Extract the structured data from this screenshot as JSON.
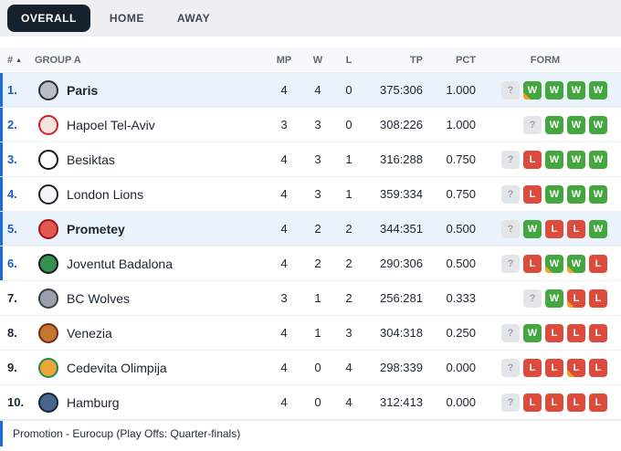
{
  "tabs": [
    {
      "label": "OVERALL",
      "active": true
    },
    {
      "label": "HOME",
      "active": false
    },
    {
      "label": "AWAY",
      "active": false
    }
  ],
  "table": {
    "headers": {
      "pos": "#",
      "sort_indicator": "▲",
      "team": "GROUP A",
      "mp": "MP",
      "w": "W",
      "l": "L",
      "tp": "TP",
      "pct": "PCT",
      "form": "FORM"
    },
    "rows": [
      {
        "pos": "1.",
        "team": "Paris",
        "mp": 4,
        "w": 4,
        "l": 0,
        "tp": "375:306",
        "pct": "1.000",
        "promoted": true,
        "highlighted": true,
        "logo": {
          "ring": "#2c3036",
          "fill": "#b9bec6"
        },
        "form": [
          {
            "r": "?"
          },
          {
            "r": "W",
            "ot": true
          },
          {
            "r": "W"
          },
          {
            "r": "W"
          },
          {
            "r": "W"
          }
        ]
      },
      {
        "pos": "2.",
        "team": "Hapoel Tel-Aviv",
        "mp": 3,
        "w": 3,
        "l": 0,
        "tp": "308:226",
        "pct": "1.000",
        "promoted": true,
        "highlighted": false,
        "logo": {
          "ring": "#d01f2e",
          "fill": "#f3e3de"
        },
        "form": [
          {
            "r": "?"
          },
          {
            "r": "W"
          },
          {
            "r": "W"
          },
          {
            "r": "W"
          }
        ]
      },
      {
        "pos": "3.",
        "team": "Besiktas",
        "mp": 4,
        "w": 3,
        "l": 1,
        "tp": "316:288",
        "pct": "0.750",
        "promoted": true,
        "highlighted": false,
        "logo": {
          "ring": "#17191c",
          "fill": "#ffffff"
        },
        "form": [
          {
            "r": "?"
          },
          {
            "r": "L"
          },
          {
            "r": "W"
          },
          {
            "r": "W"
          },
          {
            "r": "W"
          }
        ]
      },
      {
        "pos": "4.",
        "team": "London Lions",
        "mp": 4,
        "w": 3,
        "l": 1,
        "tp": "359:334",
        "pct": "0.750",
        "promoted": true,
        "highlighted": false,
        "logo": {
          "ring": "#202225",
          "fill": "#f2f3f4"
        },
        "form": [
          {
            "r": "?"
          },
          {
            "r": "L"
          },
          {
            "r": "W"
          },
          {
            "r": "W"
          },
          {
            "r": "W"
          }
        ]
      },
      {
        "pos": "5.",
        "team": "Prometey",
        "mp": 4,
        "w": 2,
        "l": 2,
        "tp": "344:351",
        "pct": "0.500",
        "promoted": true,
        "highlighted": true,
        "logo": {
          "ring": "#a01218",
          "fill": "#e0584f"
        },
        "form": [
          {
            "r": "?"
          },
          {
            "r": "W"
          },
          {
            "r": "L"
          },
          {
            "r": "L"
          },
          {
            "r": "W"
          }
        ]
      },
      {
        "pos": "6.",
        "team": "Joventut Badalona",
        "mp": 4,
        "w": 2,
        "l": 2,
        "tp": "290:306",
        "pct": "0.500",
        "promoted": true,
        "highlighted": false,
        "logo": {
          "ring": "#15181a",
          "fill": "#35914f"
        },
        "form": [
          {
            "r": "?"
          },
          {
            "r": "L"
          },
          {
            "r": "W",
            "ot": true
          },
          {
            "r": "W",
            "ot": true
          },
          {
            "r": "L"
          }
        ]
      },
      {
        "pos": "7.",
        "team": "BC Wolves",
        "mp": 3,
        "w": 1,
        "l": 2,
        "tp": "256:281",
        "pct": "0.333",
        "promoted": false,
        "highlighted": false,
        "logo": {
          "ring": "#3a3f46",
          "fill": "#9aa1aa"
        },
        "form": [
          {
            "r": "?"
          },
          {
            "r": "W"
          },
          {
            "r": "L",
            "ot": true
          },
          {
            "r": "L"
          }
        ]
      },
      {
        "pos": "8.",
        "team": "Venezia",
        "mp": 4,
        "w": 1,
        "l": 3,
        "tp": "304:318",
        "pct": "0.250",
        "promoted": false,
        "highlighted": false,
        "logo": {
          "ring": "#6b2f1a",
          "fill": "#c7752e"
        },
        "form": [
          {
            "r": "?"
          },
          {
            "r": "W"
          },
          {
            "r": "L"
          },
          {
            "r": "L"
          },
          {
            "r": "L"
          }
        ]
      },
      {
        "pos": "9.",
        "team": "Cedevita Olimpija",
        "mp": 4,
        "w": 0,
        "l": 4,
        "tp": "298:339",
        "pct": "0.000",
        "promoted": false,
        "highlighted": false,
        "logo": {
          "ring": "#1f8a54",
          "fill": "#f0a43a"
        },
        "form": [
          {
            "r": "?"
          },
          {
            "r": "L"
          },
          {
            "r": "L"
          },
          {
            "r": "L",
            "ot": true
          },
          {
            "r": "L"
          }
        ]
      },
      {
        "pos": "10.",
        "team": "Hamburg",
        "mp": 4,
        "w": 0,
        "l": 4,
        "tp": "312:413",
        "pct": "0.000",
        "promoted": false,
        "highlighted": false,
        "logo": {
          "ring": "#14253d",
          "fill": "#48648c"
        },
        "form": [
          {
            "r": "?"
          },
          {
            "r": "L"
          },
          {
            "r": "L"
          },
          {
            "r": "L"
          },
          {
            "r": "L"
          }
        ]
      }
    ]
  },
  "legend": "Promotion - Eurocup (Play Offs: Quarter-finals)",
  "colors": {
    "promotion_blue": "#1b6ae0",
    "promotion_blue_text": "#1a5fc8",
    "win_green": "#44a63f",
    "loss_red": "#dd4b3c",
    "unknown_gray": "#e3e6e9",
    "overtime_orange": "#f5a31a",
    "highlight_row": "#eaf2fb",
    "active_tab_bg": "#15212d"
  }
}
